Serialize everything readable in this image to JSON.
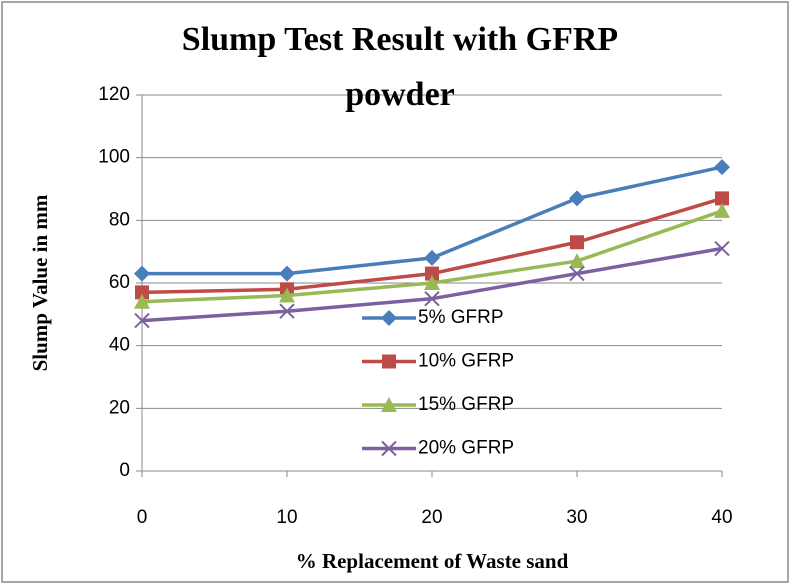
{
  "chart_data": {
    "type": "line",
    "title": "Slump Test Result with GFRP powder",
    "x_label": "% Replacement of Waste sand",
    "y_label": "Slump Value in mm",
    "x": [
      0,
      10,
      20,
      30,
      40
    ],
    "xlim": [
      0,
      40
    ],
    "xticks": [
      0,
      10,
      20,
      30,
      40
    ],
    "ylim": [
      0,
      120
    ],
    "yticks": [
      0,
      20,
      40,
      60,
      80,
      100,
      120
    ],
    "grid": true,
    "legend": "right",
    "series": [
      {
        "name": "5% GFRP",
        "color": "#4a7ebb",
        "marker": "diamond",
        "values": [
          63,
          63,
          68,
          87,
          97
        ]
      },
      {
        "name": "10% GFRP",
        "color": "#be4b48",
        "marker": "square",
        "values": [
          57,
          58,
          63,
          73,
          87
        ]
      },
      {
        "name": "15% GFRP",
        "color": "#98b954",
        "marker": "triangle",
        "values": [
          54,
          56,
          60,
          67,
          83
        ]
      },
      {
        "name": "20% GFRP",
        "color": "#7d60a0",
        "marker": "x",
        "values": [
          48,
          51,
          55,
          63,
          71
        ]
      }
    ]
  }
}
